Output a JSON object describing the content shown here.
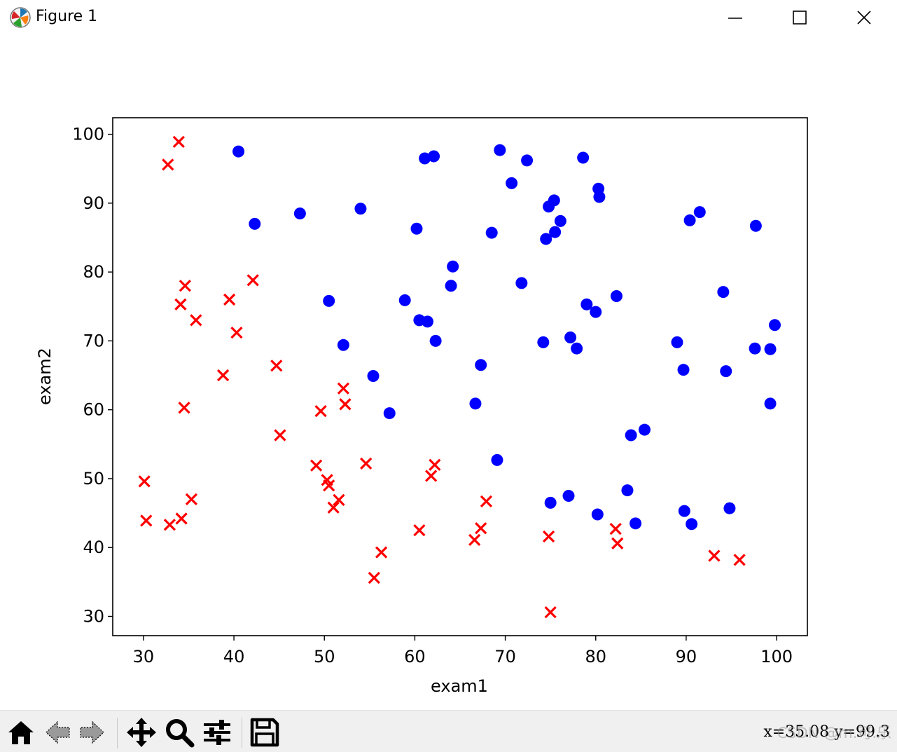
{
  "window": {
    "title": "Figure 1",
    "buttons": {
      "minimize": "minimize-icon",
      "maximize": "maximize-icon",
      "close": "close-icon"
    }
  },
  "toolbar": {
    "tools": [
      "home-icon",
      "back-icon",
      "forward-icon",
      "pan-icon",
      "zoom-icon",
      "configure-subplots-icon",
      "save-icon"
    ],
    "coordinates": "x=35.08  y=99.3",
    "watermark": "CSDN @m.可.乐"
  },
  "colors": {
    "admitted": "#0000ff",
    "not_admitted": "#ff0000"
  },
  "chart_data": {
    "type": "scatter",
    "title": "",
    "xlabel": "exam1",
    "ylabel": "exam2",
    "xlim": [
      26.6,
      103.4
    ],
    "ylim": [
      27.2,
      102.4
    ],
    "xticks": [
      30,
      40,
      50,
      60,
      70,
      80,
      90,
      100
    ],
    "yticks": [
      30,
      40,
      50,
      60,
      70,
      80,
      90,
      100
    ],
    "grid": false,
    "series": [
      {
        "marker": "circle",
        "color": "#0000ff",
        "points": [
          [
            40.5,
            97.5
          ],
          [
            42.3,
            87.0
          ],
          [
            47.3,
            88.5
          ],
          [
            50.5,
            75.8
          ],
          [
            52.1,
            69.4
          ],
          [
            54.0,
            89.2
          ],
          [
            55.4,
            64.9
          ],
          [
            57.2,
            59.5
          ],
          [
            58.9,
            75.9
          ],
          [
            60.2,
            86.3
          ],
          [
            60.5,
            73.0
          ],
          [
            61.1,
            96.5
          ],
          [
            61.4,
            72.8
          ],
          [
            62.1,
            96.8
          ],
          [
            62.3,
            70.0
          ],
          [
            64.0,
            78.0
          ],
          [
            64.2,
            80.8
          ],
          [
            66.7,
            60.9
          ],
          [
            67.3,
            66.5
          ],
          [
            68.5,
            85.7
          ],
          [
            69.1,
            52.7
          ],
          [
            69.4,
            97.7
          ],
          [
            70.7,
            92.9
          ],
          [
            71.8,
            78.4
          ],
          [
            72.4,
            96.2
          ],
          [
            74.2,
            69.8
          ],
          [
            74.5,
            84.8
          ],
          [
            74.8,
            89.5
          ],
          [
            75.0,
            46.5
          ],
          [
            75.4,
            90.4
          ],
          [
            75.5,
            85.8
          ],
          [
            76.1,
            87.4
          ],
          [
            77.0,
            47.5
          ],
          [
            77.2,
            70.5
          ],
          [
            77.9,
            68.9
          ],
          [
            78.6,
            96.6
          ],
          [
            79.0,
            75.3
          ],
          [
            80.0,
            74.2
          ],
          [
            80.2,
            44.8
          ],
          [
            80.3,
            92.1
          ],
          [
            80.4,
            90.9
          ],
          [
            82.3,
            76.5
          ],
          [
            83.5,
            48.3
          ],
          [
            83.9,
            56.3
          ],
          [
            84.4,
            43.5
          ],
          [
            85.4,
            57.1
          ],
          [
            89.0,
            69.8
          ],
          [
            89.7,
            65.8
          ],
          [
            89.8,
            45.3
          ],
          [
            90.4,
            87.5
          ],
          [
            90.6,
            43.4
          ],
          [
            91.5,
            88.7
          ],
          [
            94.1,
            77.1
          ],
          [
            94.4,
            65.6
          ],
          [
            94.8,
            45.7
          ],
          [
            97.6,
            68.9
          ],
          [
            97.7,
            86.7
          ],
          [
            99.3,
            68.8
          ],
          [
            99.3,
            60.9
          ],
          [
            99.8,
            72.3
          ]
        ]
      },
      {
        "marker": "x",
        "color": "#ff0000",
        "points": [
          [
            30.1,
            49.6
          ],
          [
            30.3,
            43.9
          ],
          [
            32.7,
            95.6
          ],
          [
            32.9,
            43.3
          ],
          [
            33.9,
            98.9
          ],
          [
            34.1,
            75.3
          ],
          [
            34.2,
            44.2
          ],
          [
            34.5,
            60.3
          ],
          [
            34.6,
            78.0
          ],
          [
            35.3,
            47.0
          ],
          [
            35.8,
            73.0
          ],
          [
            38.8,
            65.0
          ],
          [
            39.5,
            76.0
          ],
          [
            40.3,
            71.2
          ],
          [
            42.1,
            78.8
          ],
          [
            44.7,
            66.4
          ],
          [
            45.1,
            56.3
          ],
          [
            49.1,
            51.9
          ],
          [
            49.6,
            59.8
          ],
          [
            50.3,
            49.8
          ],
          [
            50.5,
            49.0
          ],
          [
            51.0,
            45.8
          ],
          [
            51.6,
            46.9
          ],
          [
            52.1,
            63.1
          ],
          [
            52.3,
            60.8
          ],
          [
            54.6,
            52.2
          ],
          [
            55.5,
            35.6
          ],
          [
            56.3,
            39.3
          ],
          [
            60.5,
            42.5
          ],
          [
            61.8,
            50.4
          ],
          [
            62.2,
            52.0
          ],
          [
            66.6,
            41.1
          ],
          [
            67.3,
            42.8
          ],
          [
            67.9,
            46.7
          ],
          [
            74.8,
            41.6
          ],
          [
            75.0,
            30.6
          ],
          [
            82.2,
            42.7
          ],
          [
            82.4,
            40.6
          ],
          [
            93.1,
            38.8
          ],
          [
            95.9,
            38.2
          ]
        ]
      }
    ]
  }
}
